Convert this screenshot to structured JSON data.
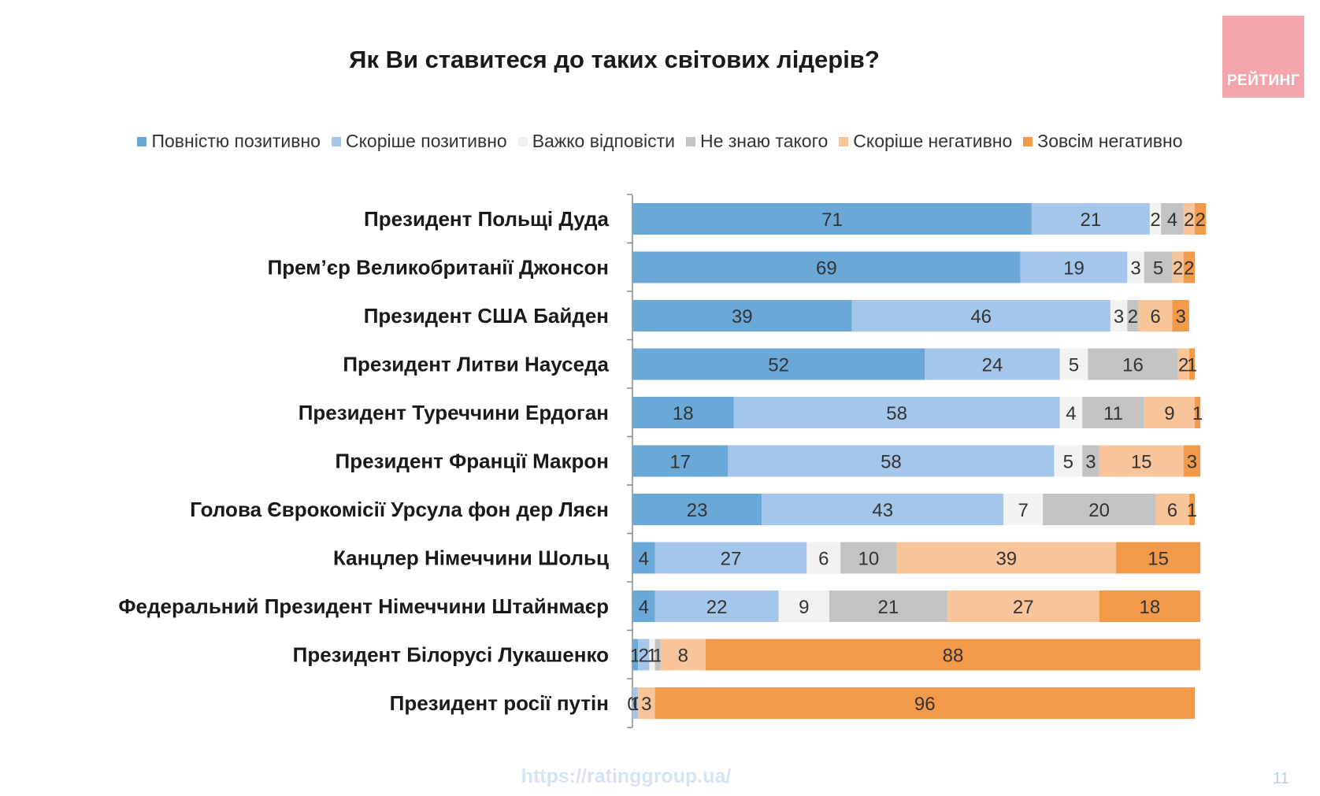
{
  "title": "Як Ви ставитеся до таких світових лідерів?",
  "logo_text": "РЕЙТИНГ",
  "footer_url": "https://ratinggroup.ua/",
  "page_number": "11",
  "colors": {
    "logo_bg": "#f2a6ab"
  },
  "chart_data": {
    "type": "bar",
    "orientation": "horizontal",
    "stacked": true,
    "xlim": [
      0,
      100
    ],
    "legend_position": "top",
    "categories": [
      "Президент Польщі Дуда",
      "Прем’єр Великобританії Джонсон",
      "Президент США Байден",
      "Президент Литви Науседа",
      "Президент Туреччини Ердоган",
      "Президент Франції Макрон",
      "Голова Єврокомісії Урсула фон дер Ляєн",
      "Канцлер Німеччини Шольц",
      "Федеральний Президент Німеччини Штайнмаєр",
      "Президент Білорусі Лукашенко",
      "Президент росії путін"
    ],
    "series": [
      {
        "name": "Повністю позитивно",
        "color": "#6aa8d8",
        "values": [
          71,
          69,
          39,
          52,
          18,
          17,
          23,
          4,
          4,
          1,
          0
        ]
      },
      {
        "name": "Скоріше позитивно",
        "color": "#a4c6ea",
        "values": [
          21,
          19,
          46,
          24,
          58,
          58,
          43,
          27,
          22,
          2,
          1
        ]
      },
      {
        "name": "Важко відповісти",
        "color": "#f2f2f2",
        "values": [
          2,
          3,
          3,
          5,
          4,
          5,
          7,
          6,
          9,
          1,
          0
        ]
      },
      {
        "name": "Не знаю такого",
        "color": "#c3c3c3",
        "values": [
          4,
          5,
          2,
          16,
          11,
          3,
          20,
          10,
          21,
          1,
          0
        ]
      },
      {
        "name": "Скоріше негативно",
        "color": "#f8c49a",
        "values": [
          2,
          2,
          6,
          2,
          9,
          15,
          6,
          39,
          27,
          8,
          3
        ]
      },
      {
        "name": "Зовсім негативно",
        "color": "#f39a4a",
        "values": [
          2,
          2,
          3,
          1,
          1,
          3,
          1,
          15,
          18,
          88,
          96
        ]
      }
    ]
  }
}
